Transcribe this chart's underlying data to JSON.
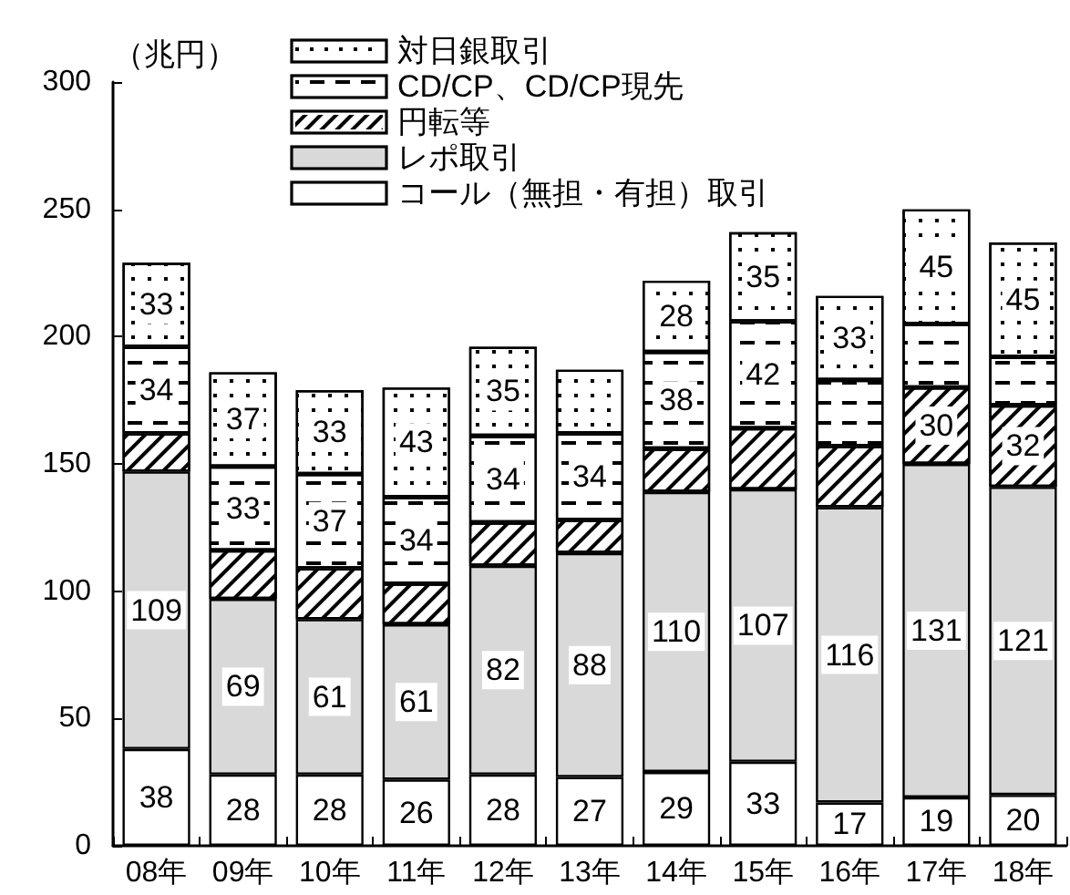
{
  "chart_data": {
    "type": "bar",
    "stacked": true,
    "ylabel": "（兆円）",
    "categories": [
      "08年",
      "09年",
      "10年",
      "11年",
      "12年",
      "13年",
      "14年",
      "15年",
      "16年",
      "17年",
      "18年"
    ],
    "series": [
      {
        "name": "コール（無担・有担）取引",
        "color": "#ffffff",
        "values": [
          38,
          28,
          28,
          26,
          28,
          27,
          29,
          33,
          17,
          19,
          20
        ],
        "value_labels": [
          "38",
          "28",
          "28",
          "26",
          "28",
          "27",
          "29",
          "33",
          "17",
          "19",
          "20"
        ]
      },
      {
        "name": "レポ取引",
        "color": "#d9d9d9",
        "values": [
          109,
          69,
          61,
          61,
          82,
          88,
          110,
          107,
          116,
          131,
          121
        ],
        "value_labels": [
          "109",
          "69",
          "61",
          "61",
          "82",
          "88",
          "110",
          "107",
          "116",
          "131",
          "121"
        ]
      },
      {
        "name": "円転等",
        "color": "#ffffff",
        "values": [
          15,
          19,
          20,
          16,
          17,
          13,
          17,
          24,
          24,
          30,
          32
        ],
        "value_labels": [
          null,
          null,
          null,
          null,
          null,
          null,
          null,
          null,
          null,
          "30",
          "32"
        ]
      },
      {
        "name": "CD/CP、CD/CP現先",
        "color": "#ffffff",
        "values": [
          34,
          33,
          37,
          34,
          34,
          34,
          38,
          42,
          26,
          25,
          19
        ],
        "value_labels": [
          "34",
          "33",
          "37",
          "34",
          "34",
          "34",
          "38",
          "42",
          null,
          null,
          null
        ]
      },
      {
        "name": "対日銀取引",
        "color": "#ffffff",
        "values": [
          33,
          37,
          33,
          43,
          35,
          25,
          28,
          35,
          33,
          45,
          45
        ],
        "value_labels": [
          "33",
          "37",
          "33",
          "43",
          "35",
          null,
          "28",
          "35",
          "33",
          "45",
          "45"
        ]
      }
    ],
    "ylim": [
      0,
      300
    ],
    "yticks": [
      0,
      50,
      100,
      150,
      200,
      250,
      300
    ],
    "legend": "top"
  }
}
